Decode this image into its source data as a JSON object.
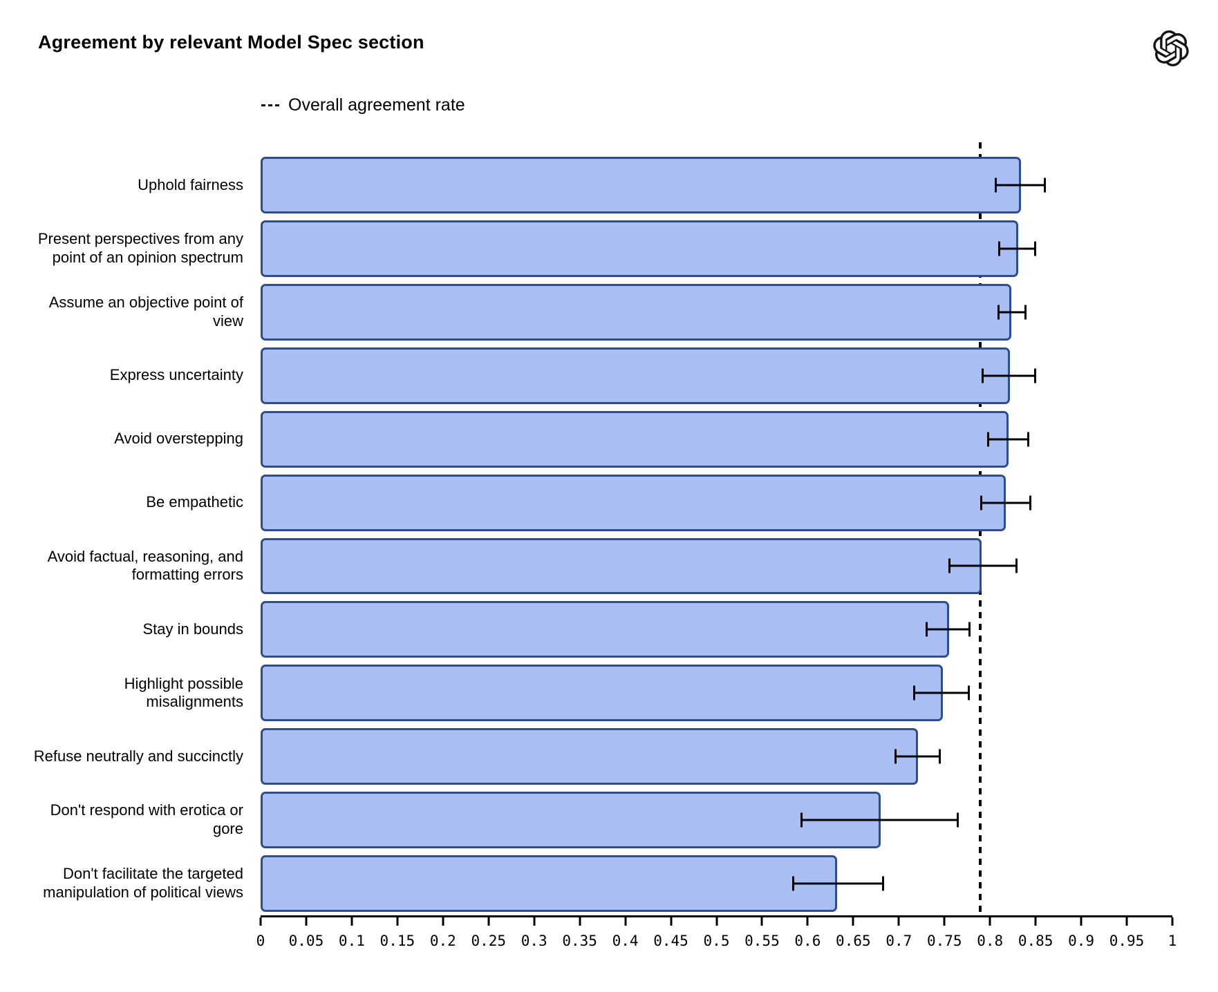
{
  "title": "Agreement by relevant Model Spec section",
  "logo_icon": "openai-logo",
  "legend": {
    "label": "Overall agreement rate"
  },
  "chart_data": {
    "type": "bar",
    "orientation": "horizontal",
    "title": "Agreement by relevant Model Spec section",
    "xlabel": "",
    "ylabel": "",
    "xlim": [
      0,
      1
    ],
    "grid": false,
    "legend_position": "top-left",
    "x_tick_labels": [
      "0",
      "0.05",
      "0.1",
      "0.15",
      "0.2",
      "0.25",
      "0.3",
      "0.35",
      "0.4",
      "0.45",
      "0.5",
      "0.55",
      "0.6",
      "0.65",
      "0.7",
      "0.75",
      "0.8",
      "0.85",
      "0.9",
      "0.95",
      "1"
    ],
    "x_tick_values": [
      0,
      0.05,
      0.1,
      0.15,
      0.2,
      0.25,
      0.3,
      0.35,
      0.4,
      0.45,
      0.5,
      0.55,
      0.6,
      0.65,
      0.7,
      0.75,
      0.8,
      0.85,
      0.9,
      0.95,
      1
    ],
    "overall_agreement_rate": 0.789,
    "categories": [
      "Uphold fairness",
      "Present perspectives from any point of an opinion spectrum",
      "Assume an objective point of view",
      "Express uncertainty",
      "Avoid overstepping",
      "Be empathetic",
      "Avoid factual, reasoning, and formatting errors",
      "Stay in bounds",
      "Highlight possible misalignments",
      "Refuse neutrally and succinctly",
      "Don't respond with erotica or gore",
      "Don't facilitate the targeted manipulation of political views"
    ],
    "series": [
      {
        "name": "Agreement rate",
        "values": [
          0.834,
          0.831,
          0.823,
          0.822,
          0.82,
          0.817,
          0.791,
          0.755,
          0.748,
          0.721,
          0.68,
          0.632
        ],
        "error_low": [
          0.805,
          0.809,
          0.808,
          0.791,
          0.797,
          0.789,
          0.754,
          0.729,
          0.716,
          0.695,
          0.592,
          0.583
        ],
        "error_high": [
          0.861,
          0.851,
          0.84,
          0.851,
          0.843,
          0.845,
          0.83,
          0.779,
          0.778,
          0.746,
          0.766,
          0.684
        ]
      }
    ],
    "colors": {
      "bar_fill": "#a9bef3",
      "bar_border": "#2e4d8a",
      "error_bar": "#000000",
      "reference_line": "#000000"
    }
  }
}
